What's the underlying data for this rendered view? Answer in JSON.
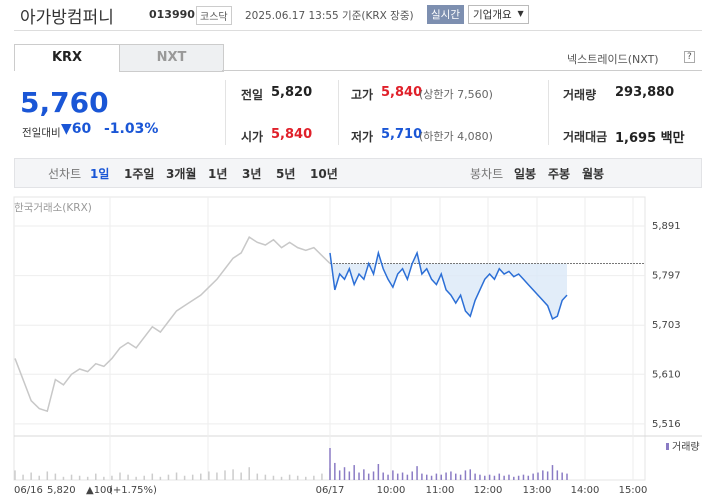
{
  "header": {
    "name": "아가방컴퍼니",
    "code": "013990",
    "market": "코스닥",
    "timestamp": "2025.06.17 13:55 기준(KRX 장중)",
    "realtime_button": "실시간",
    "company_button": "기업개요"
  },
  "tabs": {
    "items": [
      "KRX",
      "NXT"
    ],
    "active": 0,
    "nxt_link": "넥스트레이드(NXT)",
    "help": "?"
  },
  "quote": {
    "price": "5,760",
    "change_label": "전일대비",
    "change": "▼60",
    "change_pct": "-1.03%",
    "rows": [
      [
        {
          "label": "전일",
          "value": "5,820"
        },
        {
          "label": "고가",
          "value": "5,840",
          "note": "(상한가 7,560)"
        },
        {
          "label": "거래량",
          "value": "293,880"
        }
      ],
      [
        {
          "label": "시가",
          "value": "5,840"
        },
        {
          "label": "저가",
          "value": "5,710",
          "note": "(하한가 4,080)"
        },
        {
          "label": "거래대금",
          "value": "1,695 백만"
        }
      ]
    ]
  },
  "period_bar": {
    "line_label": "선차트",
    "line_periods": [
      "1일",
      "1주일",
      "3개월",
      "1년",
      "3년",
      "5년",
      "10년"
    ],
    "active": 0,
    "candle_label": "봉차트",
    "candle_periods": [
      "일봉",
      "주봉",
      "월봉"
    ]
  },
  "chart": {
    "type": "line",
    "source": "한국거래소(KRX)",
    "ylim": [
      5493,
      5946
    ],
    "yticks": [
      {
        "value": 5891,
        "label": "5,891"
      },
      {
        "value": 5797,
        "label": "5,797"
      },
      {
        "value": 5703,
        "label": "5,703"
      },
      {
        "value": 5610,
        "label": "5,610"
      },
      {
        "value": 5516,
        "label": "5,516"
      }
    ],
    "baseline": 5820,
    "x_labels": [
      "06/17",
      "10:00",
      "11:00",
      "12:00",
      "13:00",
      "14:00",
      "15:00"
    ],
    "volume_label": "거래량",
    "prev_day": {
      "color": "#c8c8c8",
      "values": [
        5640,
        5600,
        5560,
        5545,
        5540,
        5600,
        5590,
        5610,
        5620,
        5615,
        5630,
        5625,
        5640,
        5660,
        5670,
        5660,
        5680,
        5700,
        5690,
        5710,
        5730,
        5740,
        5750,
        5760,
        5775,
        5790,
        5810,
        5830,
        5840,
        5870,
        5860,
        5855,
        5865,
        5850,
        5860,
        5850,
        5845,
        5850,
        5835,
        5820
      ],
      "volumes": [
        900,
        500,
        700,
        400,
        800,
        600,
        300,
        500,
        400,
        300,
        600,
        300,
        400,
        700,
        500,
        300,
        400,
        600,
        300,
        500,
        700,
        400,
        500,
        600,
        800,
        700,
        900,
        1000,
        700,
        1200,
        600,
        500,
        400,
        300,
        500,
        400,
        300,
        400,
        600,
        1100
      ]
    },
    "today": {
      "color": "#2c6fd6",
      "values": [
        5840,
        5770,
        5800,
        5790,
        5810,
        5780,
        5800,
        5790,
        5820,
        5800,
        5840,
        5810,
        5790,
        5775,
        5800,
        5810,
        5790,
        5820,
        5840,
        5800,
        5810,
        5790,
        5780,
        5800,
        5770,
        5760,
        5745,
        5760,
        5730,
        5720,
        5750,
        5770,
        5790,
        5800,
        5790,
        5810,
        5800,
        5805,
        5795,
        5800,
        5790,
        5780,
        5770,
        5760,
        5750,
        5740,
        5715,
        5720,
        5750,
        5760
      ],
      "volumes": [
        3000,
        1600,
        900,
        1200,
        800,
        1400,
        700,
        1000,
        600,
        800,
        1500,
        700,
        500,
        900,
        600,
        700,
        500,
        800,
        1300,
        600,
        500,
        400,
        600,
        500,
        700,
        800,
        600,
        500,
        900,
        1000,
        600,
        500,
        400,
        500,
        400,
        600,
        400,
        500,
        300,
        400,
        500,
        400,
        600,
        700,
        900,
        800,
        1400,
        900,
        700,
        600
      ]
    },
    "footer": {
      "date": "06/16",
      "close": "5,820",
      "change": "▲100",
      "change_pct": "(+1.75%)"
    }
  }
}
